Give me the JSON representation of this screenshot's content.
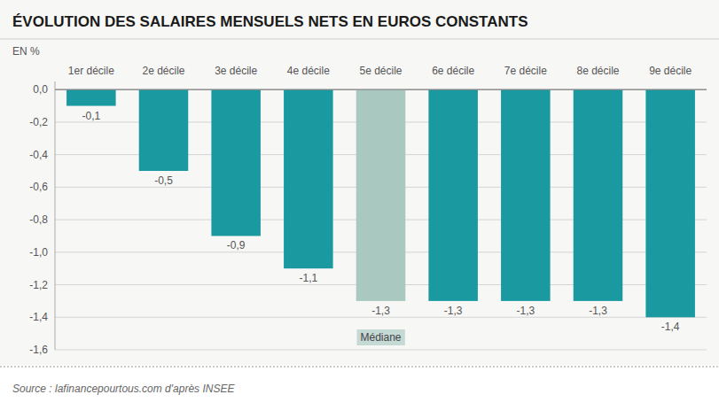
{
  "chart_data": {
    "type": "bar",
    "title": "ÉVOLUTION DES SALAIRES MENSUELS NETS EN EUROS CONSTANTS",
    "ylabel": "EN %",
    "categories": [
      "1er décile",
      "2e décile",
      "3e décile",
      "4e décile",
      "5e décile",
      "6e décile",
      "7e décile",
      "8e décile",
      "9e décile"
    ],
    "values": [
      -0.1,
      -0.5,
      -0.9,
      -1.1,
      -1.3,
      -1.3,
      -1.3,
      -1.3,
      -1.4
    ],
    "value_labels": [
      "-0,1",
      "-0,5",
      "-0,9",
      "-1,1",
      "-1,3",
      "-1,3",
      "-1,3",
      "-1,3",
      "-1,4"
    ],
    "data_labels": true,
    "colors": [
      "#1a9aa0",
      "#1a9aa0",
      "#1a9aa0",
      "#1a9aa0",
      "#a8c8c0",
      "#1a9aa0",
      "#1a9aa0",
      "#1a9aa0",
      "#1a9aa0"
    ],
    "ylim": [
      -1.6,
      0.05
    ],
    "yticks": [
      {
        "value": 0.0,
        "label": "0,0"
      },
      {
        "value": -0.2,
        "label": "-0,2"
      },
      {
        "value": -0.4,
        "label": "-0,4"
      },
      {
        "value": -0.6,
        "label": "-0,6"
      },
      {
        "value": -0.8,
        "label": "-0,8"
      },
      {
        "value": -1.0,
        "label": "-1,0"
      },
      {
        "value": -1.2,
        "label": "-1,2"
      },
      {
        "value": -1.4,
        "label": "-1,4"
      },
      {
        "value": -1.6,
        "label": "-1,6"
      }
    ],
    "grid": true,
    "annotations": [
      {
        "text": "Médiane",
        "category": "5e décile"
      }
    ],
    "source": "Source : lafinancepourtous.com d'après INSEE"
  }
}
